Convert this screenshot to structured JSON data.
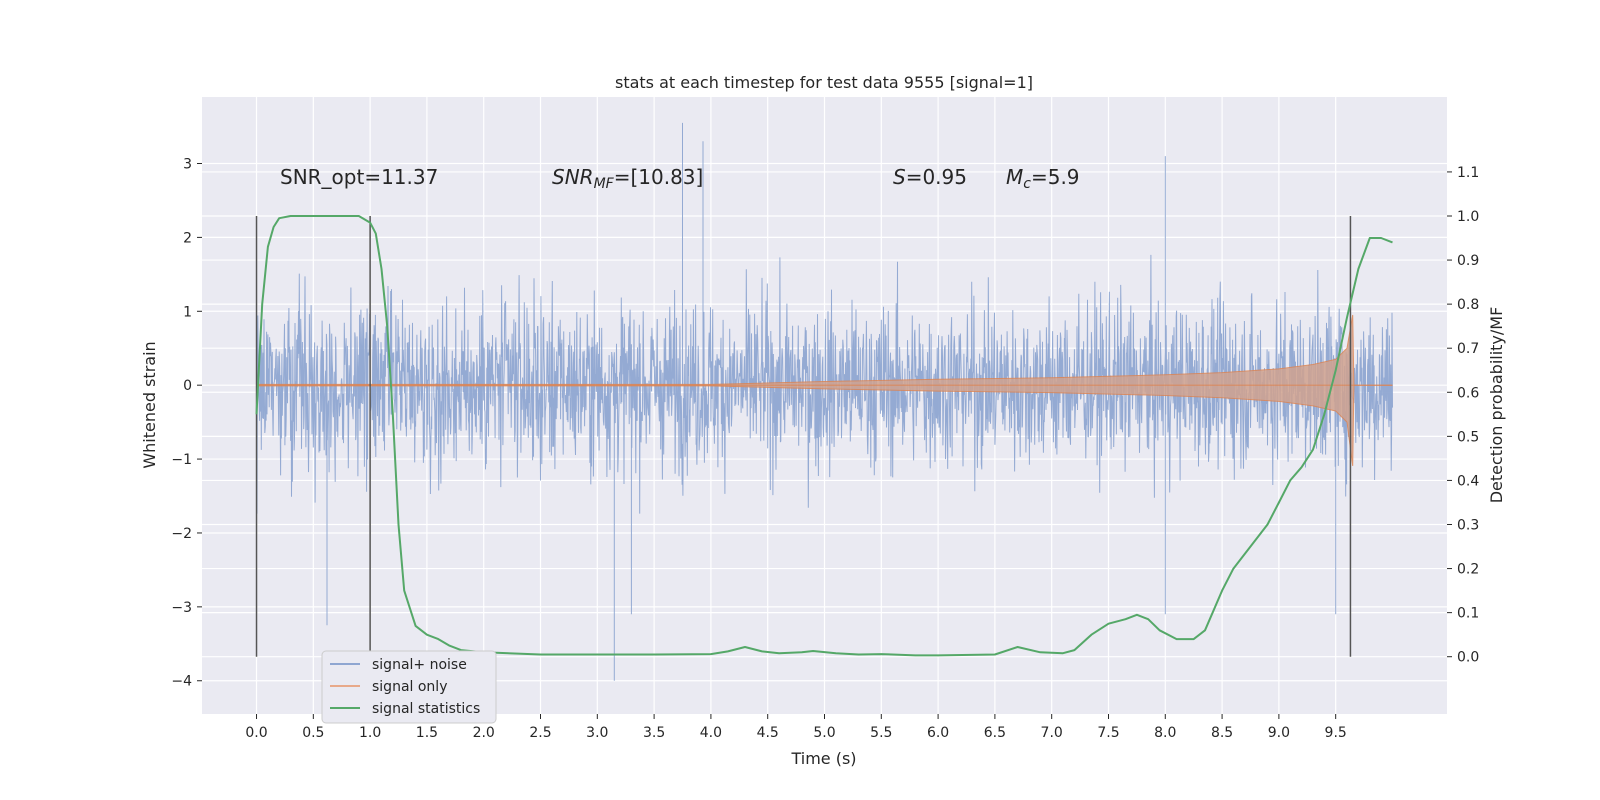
{
  "chart_data": {
    "type": "line",
    "title": "stats at each timestep for test data 9555 [signal=1]",
    "xlabel": "Time (s)",
    "ylabel": "Whitened strain",
    "y2label": "Detection probability/MF",
    "xlim": [
      -0.48,
      10.48
    ],
    "ylim": [
      -4.45,
      3.9
    ],
    "y2lim": [
      -0.13,
      1.27
    ],
    "xticks": [
      "0.0",
      "0.5",
      "1.0",
      "1.5",
      "2.0",
      "2.5",
      "3.0",
      "3.5",
      "4.0",
      "4.5",
      "5.0",
      "5.5",
      "6.0",
      "6.5",
      "7.0",
      "7.5",
      "8.0",
      "8.5",
      "9.0",
      "9.5"
    ],
    "yticks": [
      "−4",
      "−3",
      "−2",
      "−1",
      "0",
      "1",
      "2",
      "3"
    ],
    "y2ticks": [
      "0.0",
      "0.1",
      "0.2",
      "0.3",
      "0.4",
      "0.5",
      "0.6",
      "0.7",
      "0.8",
      "0.9",
      "1.0",
      "1.1"
    ],
    "grid": true,
    "legend_position": "lower-left",
    "annotations": [
      {
        "text": "SNR_opt=11.37",
        "x": 0.2,
        "y": 2.8
      },
      {
        "text": "SNR_MF=[10.83]",
        "x": 2.6,
        "y": 2.8
      },
      {
        "text": "S=0.95",
        "x": 5.6,
        "y": 2.8
      },
      {
        "text": "M_c=5.9",
        "x": 6.6,
        "y": 2.8
      }
    ],
    "vertical_lines": [
      0.0,
      1.0,
      9.63
    ],
    "series": [
      {
        "name": "signal+ noise",
        "color": "#8fa6d1",
        "axis": "left",
        "x_range": [
          0.0,
          10.0
        ],
        "envelope_typical": 1.6,
        "spikes": [
          {
            "x": 3.75,
            "y": 3.55
          },
          {
            "x": 3.93,
            "y": 3.3
          },
          {
            "x": 8.0,
            "y": 3.1
          },
          {
            "x": 0.62,
            "y": -3.25
          },
          {
            "x": 3.15,
            "y": -4.0
          },
          {
            "x": 3.3,
            "y": -3.1
          },
          {
            "x": 9.5,
            "y": -3.1
          },
          {
            "x": 8.0,
            "y": -3.1
          }
        ]
      },
      {
        "name": "signal only",
        "color": "#dd8452",
        "axis": "left",
        "amplitude": {
          "x": [
            0.0,
            4.0,
            5.0,
            6.0,
            7.0,
            8.0,
            8.5,
            9.0,
            9.3,
            9.5,
            9.6,
            9.65,
            9.66,
            10.0
          ],
          "y": [
            0.01,
            0.01,
            0.05,
            0.08,
            0.1,
            0.14,
            0.17,
            0.22,
            0.28,
            0.35,
            0.5,
            0.95,
            0.0,
            0.0
          ]
        }
      },
      {
        "name": "signal statistics",
        "color": "#55a868",
        "axis": "right",
        "x": [
          0.0,
          0.05,
          0.1,
          0.15,
          0.2,
          0.3,
          0.5,
          0.8,
          0.9,
          1.0,
          1.05,
          1.1,
          1.15,
          1.2,
          1.25,
          1.3,
          1.4,
          1.5,
          1.6,
          1.7,
          1.8,
          2.0,
          2.5,
          3.0,
          3.5,
          4.0,
          4.15,
          4.3,
          4.45,
          4.6,
          4.8,
          4.9,
          5.1,
          5.3,
          5.5,
          5.8,
          6.0,
          6.5,
          6.7,
          6.9,
          7.1,
          7.2,
          7.35,
          7.5,
          7.65,
          7.75,
          7.85,
          7.95,
          8.1,
          8.25,
          8.35,
          8.5,
          8.6,
          8.75,
          8.9,
          9.0,
          9.1,
          9.2,
          9.3,
          9.4,
          9.5,
          9.6,
          9.7,
          9.8,
          9.9,
          10.0
        ],
        "y": [
          0.55,
          0.8,
          0.93,
          0.975,
          0.995,
          1.0,
          1.0,
          1.0,
          1.0,
          0.985,
          0.96,
          0.88,
          0.75,
          0.55,
          0.3,
          0.15,
          0.07,
          0.05,
          0.04,
          0.025,
          0.015,
          0.01,
          0.005,
          0.005,
          0.005,
          0.006,
          0.012,
          0.022,
          0.012,
          0.008,
          0.01,
          0.013,
          0.008,
          0.005,
          0.006,
          0.003,
          0.003,
          0.005,
          0.022,
          0.01,
          0.008,
          0.015,
          0.05,
          0.075,
          0.085,
          0.095,
          0.085,
          0.06,
          0.04,
          0.04,
          0.06,
          0.15,
          0.2,
          0.25,
          0.3,
          0.35,
          0.4,
          0.43,
          0.47,
          0.55,
          0.65,
          0.77,
          0.88,
          0.95,
          0.95,
          0.94
        ]
      }
    ]
  }
}
